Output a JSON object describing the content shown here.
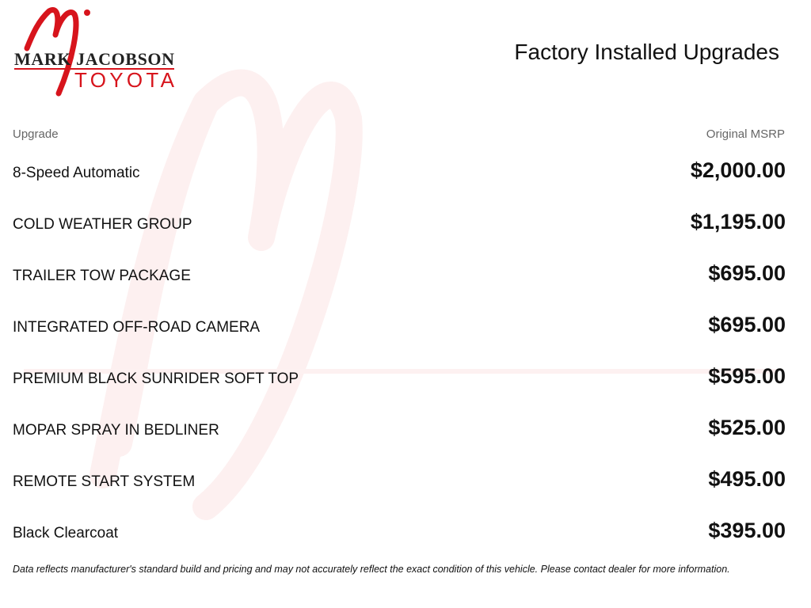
{
  "logo": {
    "text_line1": "MARK JACOBSON",
    "text_line2": "TOYOTA",
    "monogram": "mj",
    "color": "#d7141c"
  },
  "title": "Factory Installed Upgrades",
  "columns": {
    "upgrade": "Upgrade",
    "msrp": "Original MSRP"
  },
  "rows": [
    {
      "name": "8-Speed Automatic",
      "price": "$2,000.00"
    },
    {
      "name": "COLD WEATHER GROUP",
      "price": "$1,195.00"
    },
    {
      "name": "TRAILER TOW PACKAGE",
      "price": "$695.00"
    },
    {
      "name": "INTEGRATED OFF-ROAD CAMERA",
      "price": "$695.00"
    },
    {
      "name": "PREMIUM BLACK SUNRIDER SOFT TOP",
      "price": "$595.00"
    },
    {
      "name": "MOPAR SPRAY IN BEDLINER",
      "price": "$525.00"
    },
    {
      "name": "REMOTE START SYSTEM",
      "price": "$495.00"
    },
    {
      "name": "Black Clearcoat",
      "price": "$395.00"
    }
  ],
  "footer": "Data reflects manufacturer's standard build and pricing and may not accurately reflect the exact condition of this vehicle. Please contact dealer for more information."
}
